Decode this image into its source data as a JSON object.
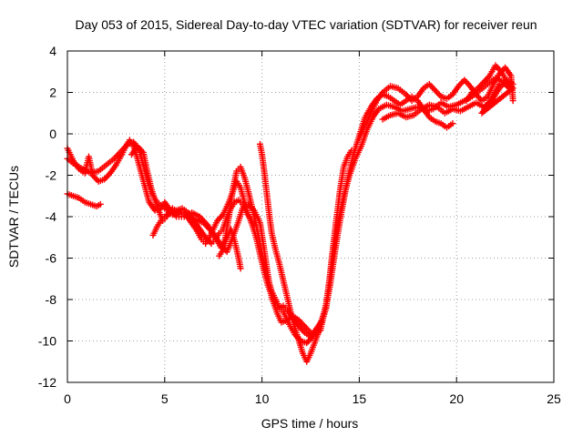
{
  "chart_data": {
    "type": "scatter",
    "title": "Day 053 of 2015, Sidereal Day-to-day VTEC variation (SDTVAR) for receiver reun",
    "xlabel": "GPS time / hours",
    "ylabel": "SDTVAR / TECUs",
    "xlim": [
      0,
      25
    ],
    "ylim": [
      -12,
      4
    ],
    "xticks": [
      "0",
      "5",
      "10",
      "15",
      "20",
      "25"
    ],
    "yticks": [
      "4",
      "2",
      "0",
      "-2",
      "-4",
      "-6",
      "-8",
      "-10",
      "-12"
    ],
    "grid": true,
    "marker": "+",
    "color": "#ff0000",
    "series": [
      {
        "points": [
          [
            0.0,
            -1.2
          ],
          [
            0.4,
            -1.5
          ],
          [
            0.8,
            -1.7
          ],
          [
            1.2,
            -1.9
          ],
          [
            1.6,
            -1.8
          ],
          [
            2.0,
            -1.5
          ],
          [
            2.4,
            -1.2
          ],
          [
            2.8,
            -0.8
          ],
          [
            3.1,
            -0.5
          ],
          [
            3.4,
            -0.4
          ],
          [
            3.7,
            -0.8
          ],
          [
            3.9,
            -1.5
          ],
          [
            4.1,
            -2.2
          ],
          [
            4.3,
            -2.8
          ],
          [
            4.6,
            -3.3
          ],
          [
            5.0,
            -3.6
          ],
          [
            5.5,
            -3.8
          ],
          [
            6.0,
            -3.9
          ],
          [
            6.5,
            -4.1
          ],
          [
            7.0,
            -4.3
          ],
          [
            7.5,
            -4.8
          ],
          [
            7.9,
            -5.4
          ],
          [
            8.2,
            -5.7
          ],
          [
            8.5,
            -5.0
          ],
          [
            8.8,
            -4.2
          ],
          [
            9.0,
            -3.6
          ],
          [
            9.3,
            -3.4
          ],
          [
            9.6,
            -3.7
          ],
          [
            9.9,
            -4.3
          ],
          [
            10.1,
            -5.5
          ],
          [
            10.3,
            -6.8
          ],
          [
            10.5,
            -7.9
          ],
          [
            10.8,
            -8.7
          ],
          [
            11.0,
            -9.1
          ],
          [
            11.3,
            -9.0
          ],
          [
            11.6,
            -8.8
          ],
          [
            11.9,
            -9.0
          ],
          [
            12.2,
            -9.3
          ],
          [
            12.6,
            -9.7
          ],
          [
            13.0,
            -9.5
          ],
          [
            13.3,
            -8.2
          ],
          [
            13.6,
            -6.2
          ],
          [
            13.9,
            -4.3
          ],
          [
            14.2,
            -3.0
          ],
          [
            14.5,
            -2.0
          ],
          [
            14.8,
            -1.2
          ],
          [
            15.1,
            -0.6
          ],
          [
            15.4,
            0.2
          ],
          [
            15.7,
            0.8
          ],
          [
            16.0,
            1.2
          ],
          [
            16.4,
            1.4
          ],
          [
            16.8,
            1.3
          ],
          [
            17.2,
            1.1
          ],
          [
            17.6,
            1.2
          ],
          [
            18.0,
            1.3
          ],
          [
            18.4,
            1.1
          ],
          [
            18.8,
            1.2
          ],
          [
            19.2,
            1.5
          ],
          [
            19.6,
            1.3
          ],
          [
            20.0,
            1.4
          ],
          [
            20.4,
            1.6
          ],
          [
            20.8,
            1.8
          ],
          [
            21.2,
            2.1
          ],
          [
            21.6,
            2.4
          ],
          [
            22.0,
            2.7
          ],
          [
            22.4,
            2.5
          ],
          [
            22.7,
            2.2
          ]
        ]
      },
      {
        "points": [
          [
            0.0,
            -2.9
          ],
          [
            0.3,
            -3.0
          ],
          [
            0.6,
            -3.1
          ],
          [
            0.9,
            -3.3
          ],
          [
            1.2,
            -3.4
          ],
          [
            1.5,
            -3.5
          ],
          [
            1.7,
            -3.4
          ]
        ]
      },
      {
        "points": [
          [
            0.0,
            -0.7
          ],
          [
            0.3,
            -1.3
          ],
          [
            0.6,
            -1.7
          ],
          [
            0.9,
            -1.9
          ],
          [
            1.1,
            -1.1
          ],
          [
            1.3,
            -2.0
          ],
          [
            1.6,
            -2.3
          ],
          [
            1.9,
            -2.2
          ],
          [
            2.2,
            -1.9
          ],
          [
            2.5,
            -1.5
          ],
          [
            2.8,
            -1.0
          ],
          [
            3.0,
            -0.6
          ],
          [
            3.2,
            -0.3
          ],
          [
            3.4,
            -0.6
          ],
          [
            3.6,
            -1.2
          ],
          [
            3.8,
            -1.9
          ],
          [
            4.0,
            -2.6
          ],
          [
            4.2,
            -3.3
          ],
          [
            4.5,
            -3.7
          ],
          [
            4.8,
            -3.6
          ],
          [
            5.0,
            -3.3
          ],
          [
            5.3,
            -3.7
          ],
          [
            5.6,
            -4.0
          ],
          [
            6.0,
            -4.0
          ],
          [
            6.4,
            -3.8
          ],
          [
            6.8,
            -4.0
          ],
          [
            7.2,
            -4.4
          ],
          [
            7.6,
            -5.0
          ],
          [
            7.9,
            -5.5
          ],
          [
            8.1,
            -5.1
          ],
          [
            8.3,
            -4.0
          ],
          [
            8.5,
            -2.7
          ],
          [
            8.7,
            -1.8
          ],
          [
            8.9,
            -1.6
          ],
          [
            9.1,
            -2.1
          ],
          [
            9.3,
            -2.8
          ],
          [
            9.5,
            -3.6
          ],
          [
            9.7,
            -4.4
          ],
          [
            9.9,
            -5.3
          ],
          [
            10.1,
            -6.2
          ],
          [
            10.3,
            -7.0
          ],
          [
            10.5,
            -7.6
          ],
          [
            10.7,
            -8.0
          ],
          [
            10.9,
            -8.4
          ],
          [
            11.1,
            -8.6
          ],
          [
            11.4,
            -9.2
          ],
          [
            11.7,
            -9.7
          ],
          [
            12.0,
            -10.0
          ],
          [
            12.3,
            -10.1
          ],
          [
            12.6,
            -9.8
          ],
          [
            12.9,
            -9.4
          ],
          [
            13.1,
            -8.9
          ],
          [
            13.3,
            -8.3
          ],
          [
            13.5,
            -7.3
          ],
          [
            13.7,
            -6.0
          ],
          [
            13.9,
            -4.8
          ],
          [
            14.1,
            -3.7
          ],
          [
            14.3,
            -2.7
          ],
          [
            14.5,
            -1.8
          ],
          [
            14.7,
            -1.0
          ],
          [
            14.9,
            -0.4
          ],
          [
            15.1,
            0.2
          ],
          [
            15.3,
            0.8
          ],
          [
            15.6,
            1.3
          ],
          [
            15.9,
            1.7
          ],
          [
            16.2,
            1.9
          ],
          [
            16.5,
            1.8
          ],
          [
            16.8,
            1.6
          ],
          [
            17.1,
            1.4
          ],
          [
            17.4,
            1.6
          ],
          [
            17.7,
            1.8
          ],
          [
            18.0,
            1.6
          ],
          [
            18.3,
            1.2
          ],
          [
            18.6,
            0.8
          ],
          [
            18.9,
            0.6
          ],
          [
            19.2,
            0.5
          ],
          [
            19.5,
            0.3
          ],
          [
            19.8,
            0.5
          ]
        ]
      },
      {
        "points": [
          [
            3.3,
            -1.0
          ],
          [
            3.6,
            -0.6
          ],
          [
            3.9,
            -0.9
          ],
          [
            4.1,
            -1.8
          ],
          [
            4.3,
            -2.6
          ],
          [
            4.6,
            -3.5
          ],
          [
            4.9,
            -4.2
          ],
          [
            5.1,
            -4.0
          ],
          [
            5.4,
            -3.6
          ],
          [
            5.7,
            -3.8
          ],
          [
            6.0,
            -3.8
          ],
          [
            6.3,
            -4.2
          ],
          [
            6.6,
            -4.6
          ],
          [
            6.9,
            -5.1
          ],
          [
            7.1,
            -5.3
          ],
          [
            7.3,
            -5.0
          ],
          [
            7.5,
            -4.6
          ],
          [
            7.7,
            -4.2
          ],
          [
            8.0,
            -3.9
          ],
          [
            8.3,
            -3.3
          ],
          [
            8.5,
            -2.8
          ],
          [
            8.7,
            -2.3
          ],
          [
            8.9,
            -2.6
          ],
          [
            9.1,
            -3.3
          ],
          [
            9.3,
            -3.9
          ],
          [
            9.5,
            -4.4
          ],
          [
            9.7,
            -5.0
          ],
          [
            9.9,
            -5.8
          ],
          [
            10.1,
            -6.6
          ],
          [
            10.3,
            -7.3
          ],
          [
            10.5,
            -7.8
          ],
          [
            10.7,
            -8.2
          ],
          [
            10.9,
            -8.4
          ],
          [
            11.1,
            -8.3
          ],
          [
            11.3,
            -8.5
          ],
          [
            11.6,
            -8.9
          ],
          [
            11.9,
            -9.3
          ],
          [
            12.2,
            -9.6
          ],
          [
            12.5,
            -9.8
          ],
          [
            12.8,
            -9.4
          ],
          [
            13.1,
            -9.0
          ]
        ]
      },
      {
        "points": [
          [
            4.4,
            -4.9
          ],
          [
            4.6,
            -4.5
          ],
          [
            4.8,
            -4.2
          ],
          [
            5.0,
            -4.0
          ],
          [
            5.2,
            -3.8
          ],
          [
            5.4,
            -3.9
          ],
          [
            5.6,
            -3.7
          ],
          [
            5.9,
            -3.6
          ],
          [
            6.2,
            -3.8
          ],
          [
            6.5,
            -4.2
          ],
          [
            6.8,
            -4.6
          ],
          [
            7.1,
            -5.0
          ],
          [
            7.4,
            -5.3
          ],
          [
            7.6,
            -5.1
          ],
          [
            7.8,
            -4.8
          ],
          [
            8.0,
            -4.6
          ],
          [
            8.2,
            -4.0
          ],
          [
            8.4,
            -3.6
          ],
          [
            8.6,
            -3.3
          ],
          [
            8.8,
            -3.2
          ],
          [
            9.0,
            -3.4
          ],
          [
            9.2,
            -3.8
          ],
          [
            9.4,
            -4.1
          ],
          [
            9.6,
            -4.4
          ]
        ]
      },
      {
        "points": [
          [
            9.9,
            -0.5
          ],
          [
            10.0,
            -1.0
          ],
          [
            10.1,
            -1.7
          ],
          [
            10.2,
            -2.5
          ],
          [
            10.3,
            -3.3
          ],
          [
            10.4,
            -4.1
          ],
          [
            10.5,
            -4.8
          ],
          [
            10.7,
            -5.6
          ],
          [
            10.9,
            -6.3
          ],
          [
            11.1,
            -7.1
          ],
          [
            11.3,
            -7.9
          ],
          [
            11.5,
            -8.7
          ],
          [
            11.7,
            -9.4
          ],
          [
            11.9,
            -10.0
          ],
          [
            12.1,
            -10.6
          ],
          [
            12.3,
            -11.0
          ],
          [
            12.5,
            -10.6
          ],
          [
            12.7,
            -10.1
          ],
          [
            12.9,
            -9.6
          ],
          [
            13.1,
            -9.0
          ],
          [
            13.3,
            -8.4
          ],
          [
            13.4,
            -7.7
          ],
          [
            13.5,
            -6.8
          ],
          [
            13.6,
            -5.9
          ],
          [
            13.7,
            -5.1
          ],
          [
            13.8,
            -4.3
          ],
          [
            13.9,
            -3.6
          ],
          [
            14.0,
            -2.8
          ],
          [
            14.1,
            -2.2
          ],
          [
            14.2,
            -1.6
          ],
          [
            14.4,
            -1.1
          ],
          [
            14.6,
            -0.8
          ]
        ]
      },
      {
        "points": [
          [
            7.8,
            -5.9
          ],
          [
            8.0,
            -5.6
          ],
          [
            8.2,
            -5.0
          ],
          [
            8.4,
            -4.6
          ],
          [
            8.6,
            -5.2
          ],
          [
            8.8,
            -6.0
          ],
          [
            8.9,
            -6.5
          ]
        ]
      },
      {
        "points": [
          [
            15.0,
            -0.2
          ],
          [
            15.3,
            0.4
          ],
          [
            15.6,
            1.0
          ],
          [
            15.9,
            1.6
          ],
          [
            16.2,
            2.0
          ],
          [
            16.6,
            2.3
          ],
          [
            17.0,
            2.2
          ],
          [
            17.4,
            1.9
          ],
          [
            17.7,
            1.6
          ],
          [
            18.0,
            1.8
          ],
          [
            18.3,
            2.2
          ],
          [
            18.6,
            2.4
          ],
          [
            18.9,
            2.1
          ],
          [
            19.2,
            1.8
          ],
          [
            19.5,
            1.7
          ],
          [
            19.8,
            1.9
          ],
          [
            20.1,
            2.3
          ],
          [
            20.4,
            2.6
          ],
          [
            20.7,
            2.3
          ],
          [
            21.0,
            1.9
          ],
          [
            21.3,
            1.6
          ],
          [
            21.6,
            1.8
          ],
          [
            21.9,
            2.4
          ],
          [
            22.2,
            2.9
          ],
          [
            22.5,
            3.2
          ],
          [
            22.8,
            2.8
          ],
          [
            22.9,
            1.6
          ]
        ]
      },
      {
        "points": [
          [
            16.2,
            0.7
          ],
          [
            16.6,
            0.9
          ],
          [
            17.0,
            1.0
          ],
          [
            17.4,
            0.8
          ],
          [
            17.8,
            0.9
          ],
          [
            18.2,
            1.2
          ],
          [
            18.6,
            1.4
          ],
          [
            19.0,
            1.3
          ],
          [
            19.4,
            1.0
          ],
          [
            19.8,
            1.2
          ],
          [
            20.2,
            1.1
          ],
          [
            20.6,
            1.3
          ],
          [
            21.0,
            1.5
          ],
          [
            21.4,
            1.3
          ],
          [
            21.8,
            1.6
          ],
          [
            22.2,
            2.2
          ],
          [
            22.6,
            2.6
          ],
          [
            22.9,
            2.4
          ]
        ]
      },
      {
        "points": [
          [
            20.5,
            1.6
          ],
          [
            20.8,
            2.0
          ],
          [
            21.1,
            2.2
          ],
          [
            21.4,
            2.5
          ],
          [
            21.7,
            2.8
          ],
          [
            22.0,
            3.3
          ],
          [
            22.3,
            3.0
          ],
          [
            22.6,
            2.5
          ],
          [
            22.9,
            2.2
          ],
          [
            21.3,
            1.0
          ],
          [
            21.6,
            1.4
          ],
          [
            21.9,
            1.9
          ],
          [
            22.2,
            2.4
          ]
        ]
      }
    ]
  }
}
